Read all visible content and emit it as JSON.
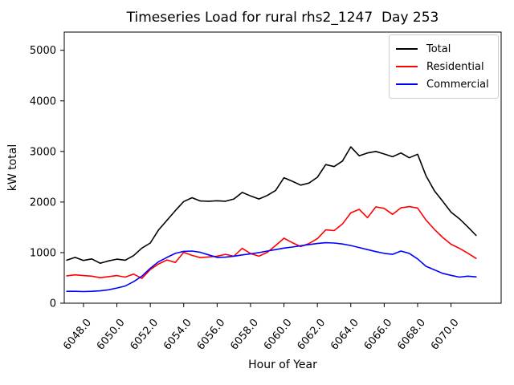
{
  "title": "Timeseries Load for rural rhs2_1247  Day 253",
  "chart_data": {
    "type": "line",
    "title": "Timeseries Load for rural rhs2_1247  Day 253",
    "xlabel": "Hour of Year",
    "ylabel": "kW total",
    "grid": false,
    "legend_position": "upper right",
    "xlim": [
      6046.85,
      6073.0
    ],
    "ylim": [
      0,
      5360
    ],
    "x_ticks": [
      6048,
      6050,
      6052,
      6054,
      6056,
      6058,
      6060,
      6062,
      6064,
      6066,
      6068,
      6070
    ],
    "x_tick_labels": [
      "6048.0",
      "6050.0",
      "6052.0",
      "6054.0",
      "6056.0",
      "6058.0",
      "6060.0",
      "6062.0",
      "6064.0",
      "6066.0",
      "6068.0",
      "6070.0"
    ],
    "y_ticks": [
      0,
      1000,
      2000,
      3000,
      4000,
      5000
    ],
    "y_tick_labels": [
      "0",
      "1000",
      "2000",
      "3000",
      "4000",
      "5000"
    ],
    "x": [
      6047.0,
      6047.5,
      6048.0,
      6048.5,
      6049.0,
      6049.5,
      6050.0,
      6050.5,
      6051.0,
      6051.5,
      6052.0,
      6052.5,
      6053.0,
      6053.5,
      6054.0,
      6054.5,
      6055.0,
      6055.5,
      6056.0,
      6056.5,
      6057.0,
      6057.5,
      6058.0,
      6058.5,
      6059.0,
      6059.5,
      6060.0,
      6060.5,
      6061.0,
      6061.5,
      6062.0,
      6062.5,
      6063.0,
      6063.5,
      6064.0,
      6064.5,
      6065.0,
      6065.5,
      6066.0,
      6066.5,
      6067.0,
      6067.5,
      6068.0,
      6068.5,
      6069.0,
      6069.5,
      6070.0,
      6070.5,
      6071.0,
      6071.5
    ],
    "series": [
      {
        "name": "Total",
        "color": "#000000",
        "values": [
          850,
          905,
          845,
          875,
          790,
          835,
          870,
          850,
          940,
          1090,
          1190,
          1450,
          1640,
          1830,
          2010,
          2085,
          2020,
          2015,
          2025,
          2015,
          2060,
          2190,
          2120,
          2060,
          2130,
          2230,
          2480,
          2410,
          2335,
          2375,
          2490,
          2740,
          2700,
          2810,
          3090,
          2915,
          2970,
          3000,
          2950,
          2895,
          2970,
          2875,
          2945,
          2520,
          2225,
          2015,
          1800,
          1670,
          1510,
          1340
        ]
      },
      {
        "name": "Residential",
        "color": "#ff0000",
        "values": [
          540,
          560,
          545,
          535,
          505,
          525,
          545,
          515,
          575,
          490,
          665,
          775,
          855,
          805,
          1005,
          945,
          900,
          915,
          930,
          965,
          930,
          1085,
          980,
          930,
          1005,
          1140,
          1285,
          1195,
          1120,
          1180,
          1275,
          1450,
          1435,
          1565,
          1785,
          1855,
          1690,
          1905,
          1875,
          1755,
          1885,
          1910,
          1880,
          1645,
          1460,
          1300,
          1165,
          1085,
          990,
          885
        ]
      },
      {
        "name": "Commercial",
        "color": "#0000ff",
        "values": [
          235,
          235,
          230,
          235,
          245,
          265,
          300,
          340,
          425,
          535,
          690,
          820,
          905,
          985,
          1025,
          1030,
          1005,
          955,
          905,
          910,
          930,
          955,
          975,
          1000,
          1030,
          1060,
          1090,
          1110,
          1135,
          1160,
          1180,
          1195,
          1190,
          1170,
          1140,
          1100,
          1060,
          1020,
          985,
          965,
          1030,
          985,
          875,
          730,
          660,
          590,
          550,
          515,
          535,
          520
        ]
      }
    ]
  }
}
